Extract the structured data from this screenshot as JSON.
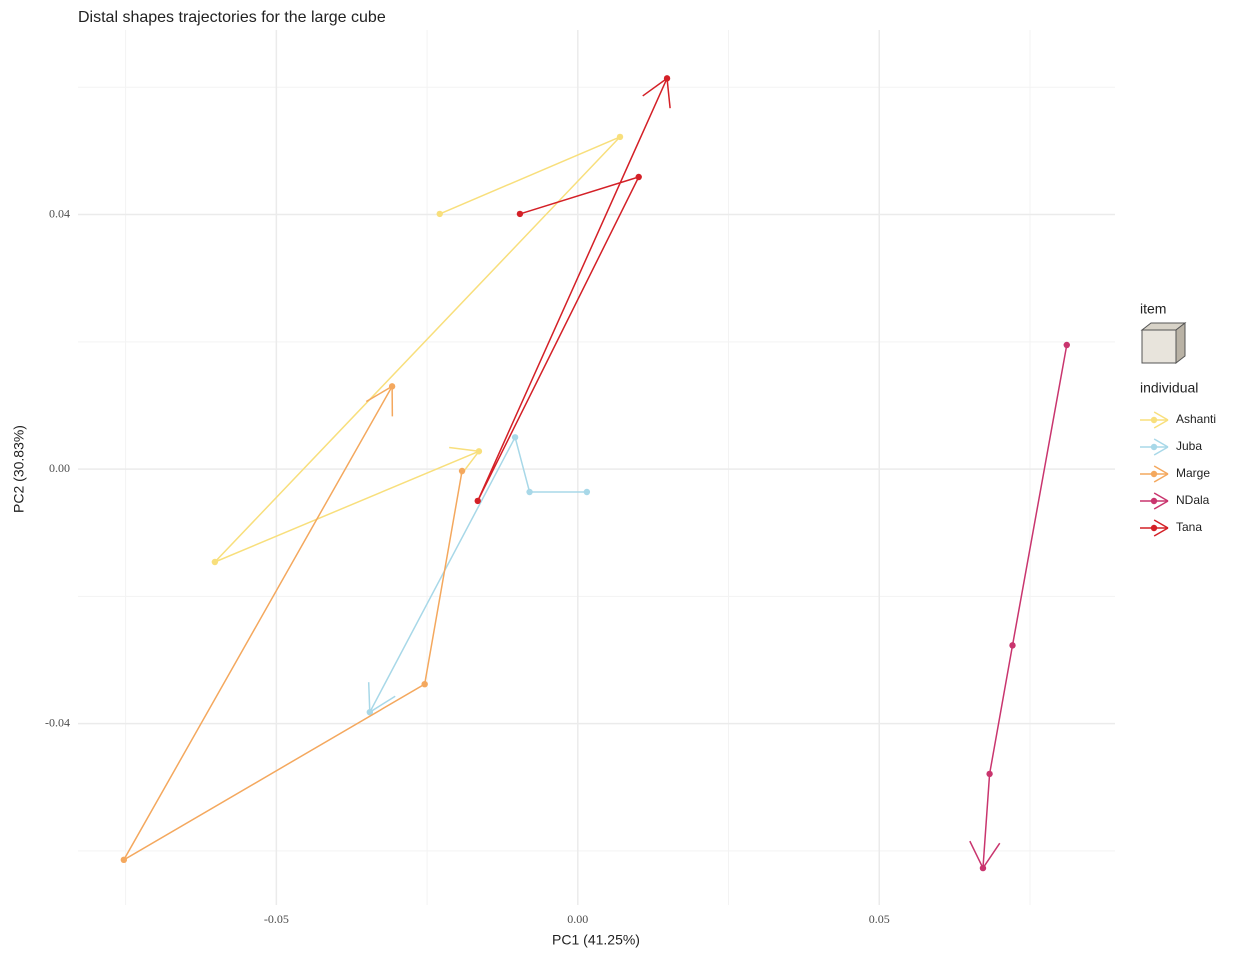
{
  "chart_data": {
    "type": "trajectory",
    "title": "Distal shapes trajectories for the large cube",
    "x_label": "PC1 (41.25%)",
    "y_label": "PC2 (30.83%)",
    "legend_title": "individual",
    "legend_item_title": "item",
    "xlim": [
      -0.0829,
      0.0891
    ],
    "ylim": [
      -0.0685,
      0.069
    ],
    "xticks": [
      -0.05,
      {
        "value": 0,
        "label": "0.00"
      },
      0.05
    ],
    "yticks": [
      -0.04,
      {
        "value": 0,
        "label": "0.00"
      },
      0.04
    ],
    "x_minor_grid": [
      -0.075,
      -0.025,
      0.025,
      0.075
    ],
    "y_minor_grid": [
      -0.06,
      -0.02,
      0.02,
      0.06
    ],
    "grid": true,
    "legend_position": "right",
    "series": [
      {
        "name": "Ashanti",
        "color": "#f8df7c",
        "x": [
          -0.0229,
          0.007,
          -0.0602,
          -0.0164
        ],
        "values": [
          0.0401,
          0.0522,
          -0.0146,
          0.0028
        ]
      },
      {
        "name": "Juba",
        "color": "#a8d8e8",
        "x": [
          0.0015,
          -0.008,
          -0.0104,
          -0.0345
        ],
        "values": [
          -0.0036,
          -0.0036,
          0.005,
          -0.0382
        ]
      },
      {
        "name": "Marge",
        "color": "#f4a85e",
        "x": [
          -0.0192,
          -0.0254,
          -0.0753,
          -0.0308
        ],
        "values": [
          -0.0003,
          -0.0338,
          -0.0614,
          0.013
        ]
      },
      {
        "name": "NDala",
        "color": "#c9356e",
        "x": [
          0.0811,
          0.0721,
          0.0683,
          0.0672
        ],
        "values": [
          0.0195,
          -0.0277,
          -0.0479,
          -0.0627
        ]
      },
      {
        "name": "Tana",
        "color": "#d42027",
        "x": [
          -0.0096,
          0.0101,
          -0.0166,
          0.0148
        ],
        "values": [
          0.0401,
          0.0459,
          -0.005,
          0.0614
        ]
      }
    ]
  }
}
